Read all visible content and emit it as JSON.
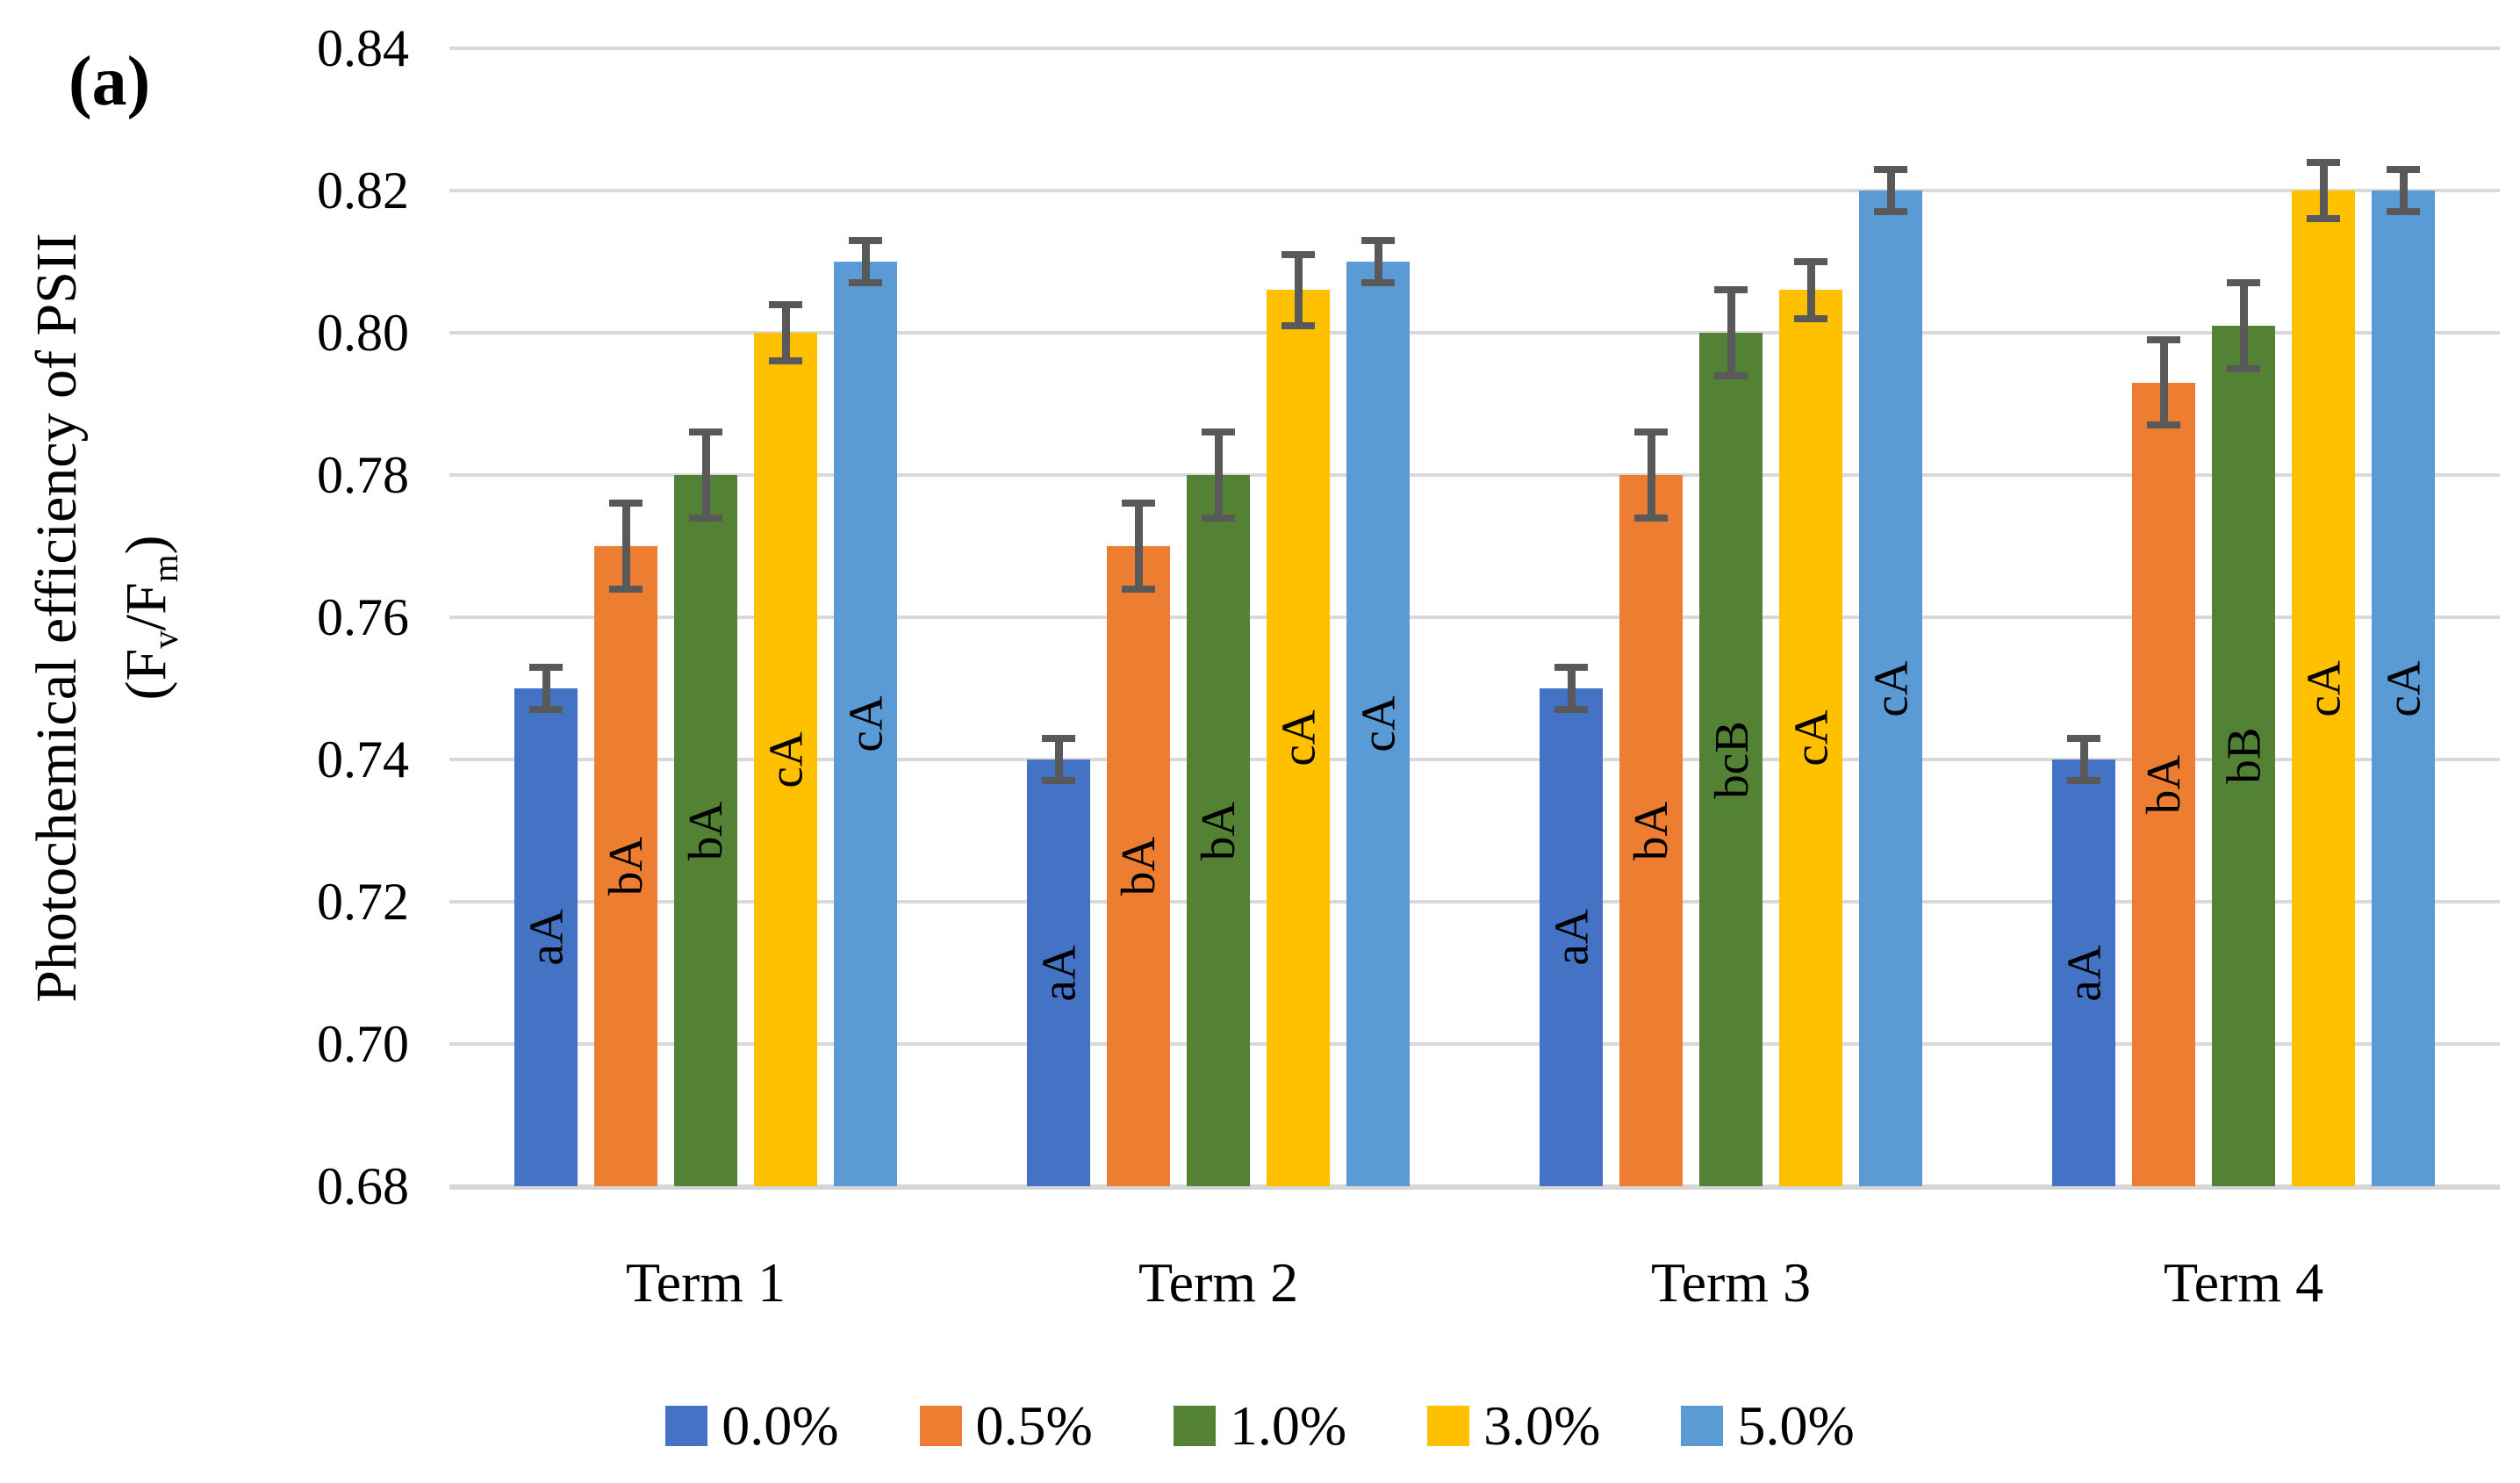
{
  "panel_label": "(a)",
  "y_axis": {
    "title_line1": "Photochemical efficiency of PSII",
    "title_line2_parts": {
      "open": "(F",
      "sub1": "v",
      "mid": "/F",
      "sub2": "m",
      "close": ")"
    },
    "ticks": [
      "0.84",
      "0.82",
      "0.80",
      "0.78",
      "0.76",
      "0.74",
      "0.72",
      "0.70",
      "0.68"
    ],
    "min": 0.68,
    "max": 0.84,
    "step": 0.02
  },
  "chart_data": {
    "type": "bar",
    "title": "",
    "xlabel": "",
    "ylabel": "Photochemical efficiency of PSII (Fv/Fm)",
    "categories": [
      "Term 1",
      "Term 2",
      "Term 3",
      "Term 4"
    ],
    "series": [
      {
        "name": "0.0%",
        "color": "#4472C4",
        "values": [
          0.75,
          0.74,
          0.75,
          0.74
        ],
        "errors": [
          0.003,
          0.003,
          0.003,
          0.003
        ],
        "labels": [
          "aA",
          "aA",
          "aA",
          "aA"
        ]
      },
      {
        "name": "0.5%",
        "color": "#ED7D31",
        "values": [
          0.77,
          0.77,
          0.78,
          0.793
        ],
        "errors": [
          0.006,
          0.006,
          0.006,
          0.006
        ],
        "labels": [
          "bA",
          "bA",
          "bA",
          "bA"
        ]
      },
      {
        "name": "1.0%",
        "color": "#548235",
        "values": [
          0.78,
          0.78,
          0.8,
          0.801
        ],
        "errors": [
          0.006,
          0.006,
          0.006,
          0.006
        ],
        "labels": [
          "bA",
          "bA",
          "bcB",
          "bB"
        ]
      },
      {
        "name": "3.0%",
        "color": "#FFC000",
        "values": [
          0.8,
          0.806,
          0.806,
          0.82
        ],
        "errors": [
          0.004,
          0.005,
          0.004,
          0.004
        ],
        "labels": [
          "cA",
          "cA",
          "cA",
          "cA"
        ]
      },
      {
        "name": "5.0%",
        "color": "#5B9BD5",
        "values": [
          0.81,
          0.81,
          0.82,
          0.82
        ],
        "errors": [
          0.003,
          0.003,
          0.003,
          0.003
        ],
        "labels": [
          "cA",
          "cA",
          "cA",
          "cA"
        ]
      }
    ],
    "ylim": [
      0.68,
      0.84
    ],
    "grid": true,
    "legend_position": "bottom",
    "gridline_color": "#D9D9D9",
    "error_bar_color": "#595959"
  }
}
